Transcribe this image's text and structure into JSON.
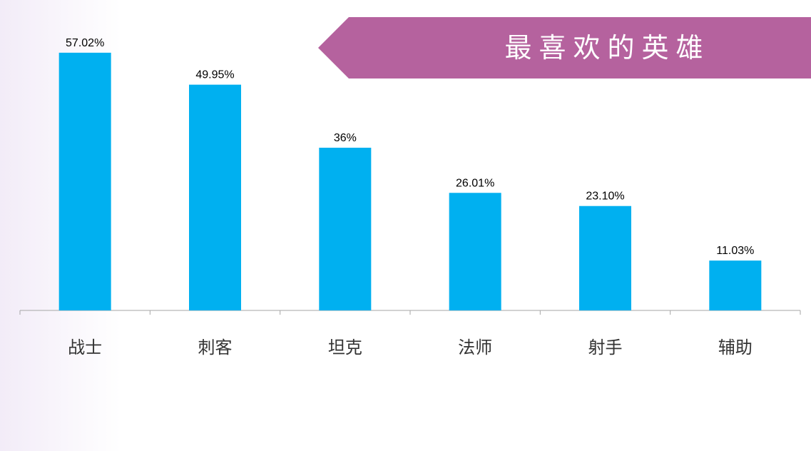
{
  "colors": {
    "bar": "#00b0f0",
    "banner": "#b5629e",
    "axis": "#a6a6a6",
    "text": "#000000",
    "category_text": "#333333"
  },
  "header": {
    "title": "最喜欢的英雄"
  },
  "chart_data": {
    "type": "bar",
    "title": "最喜欢的英雄",
    "categories": [
      "战士",
      "刺客",
      "坦克",
      "法师",
      "射手",
      "辅助"
    ],
    "values": [
      57.02,
      49.95,
      36,
      26.01,
      23.1,
      11.03
    ],
    "value_labels": [
      "57.02%",
      "49.95%",
      "36%",
      "26.01%",
      "23.10%",
      "11.03%"
    ],
    "unit": "%",
    "ylim": [
      0,
      60
    ],
    "grid": false,
    "legend": "none"
  }
}
